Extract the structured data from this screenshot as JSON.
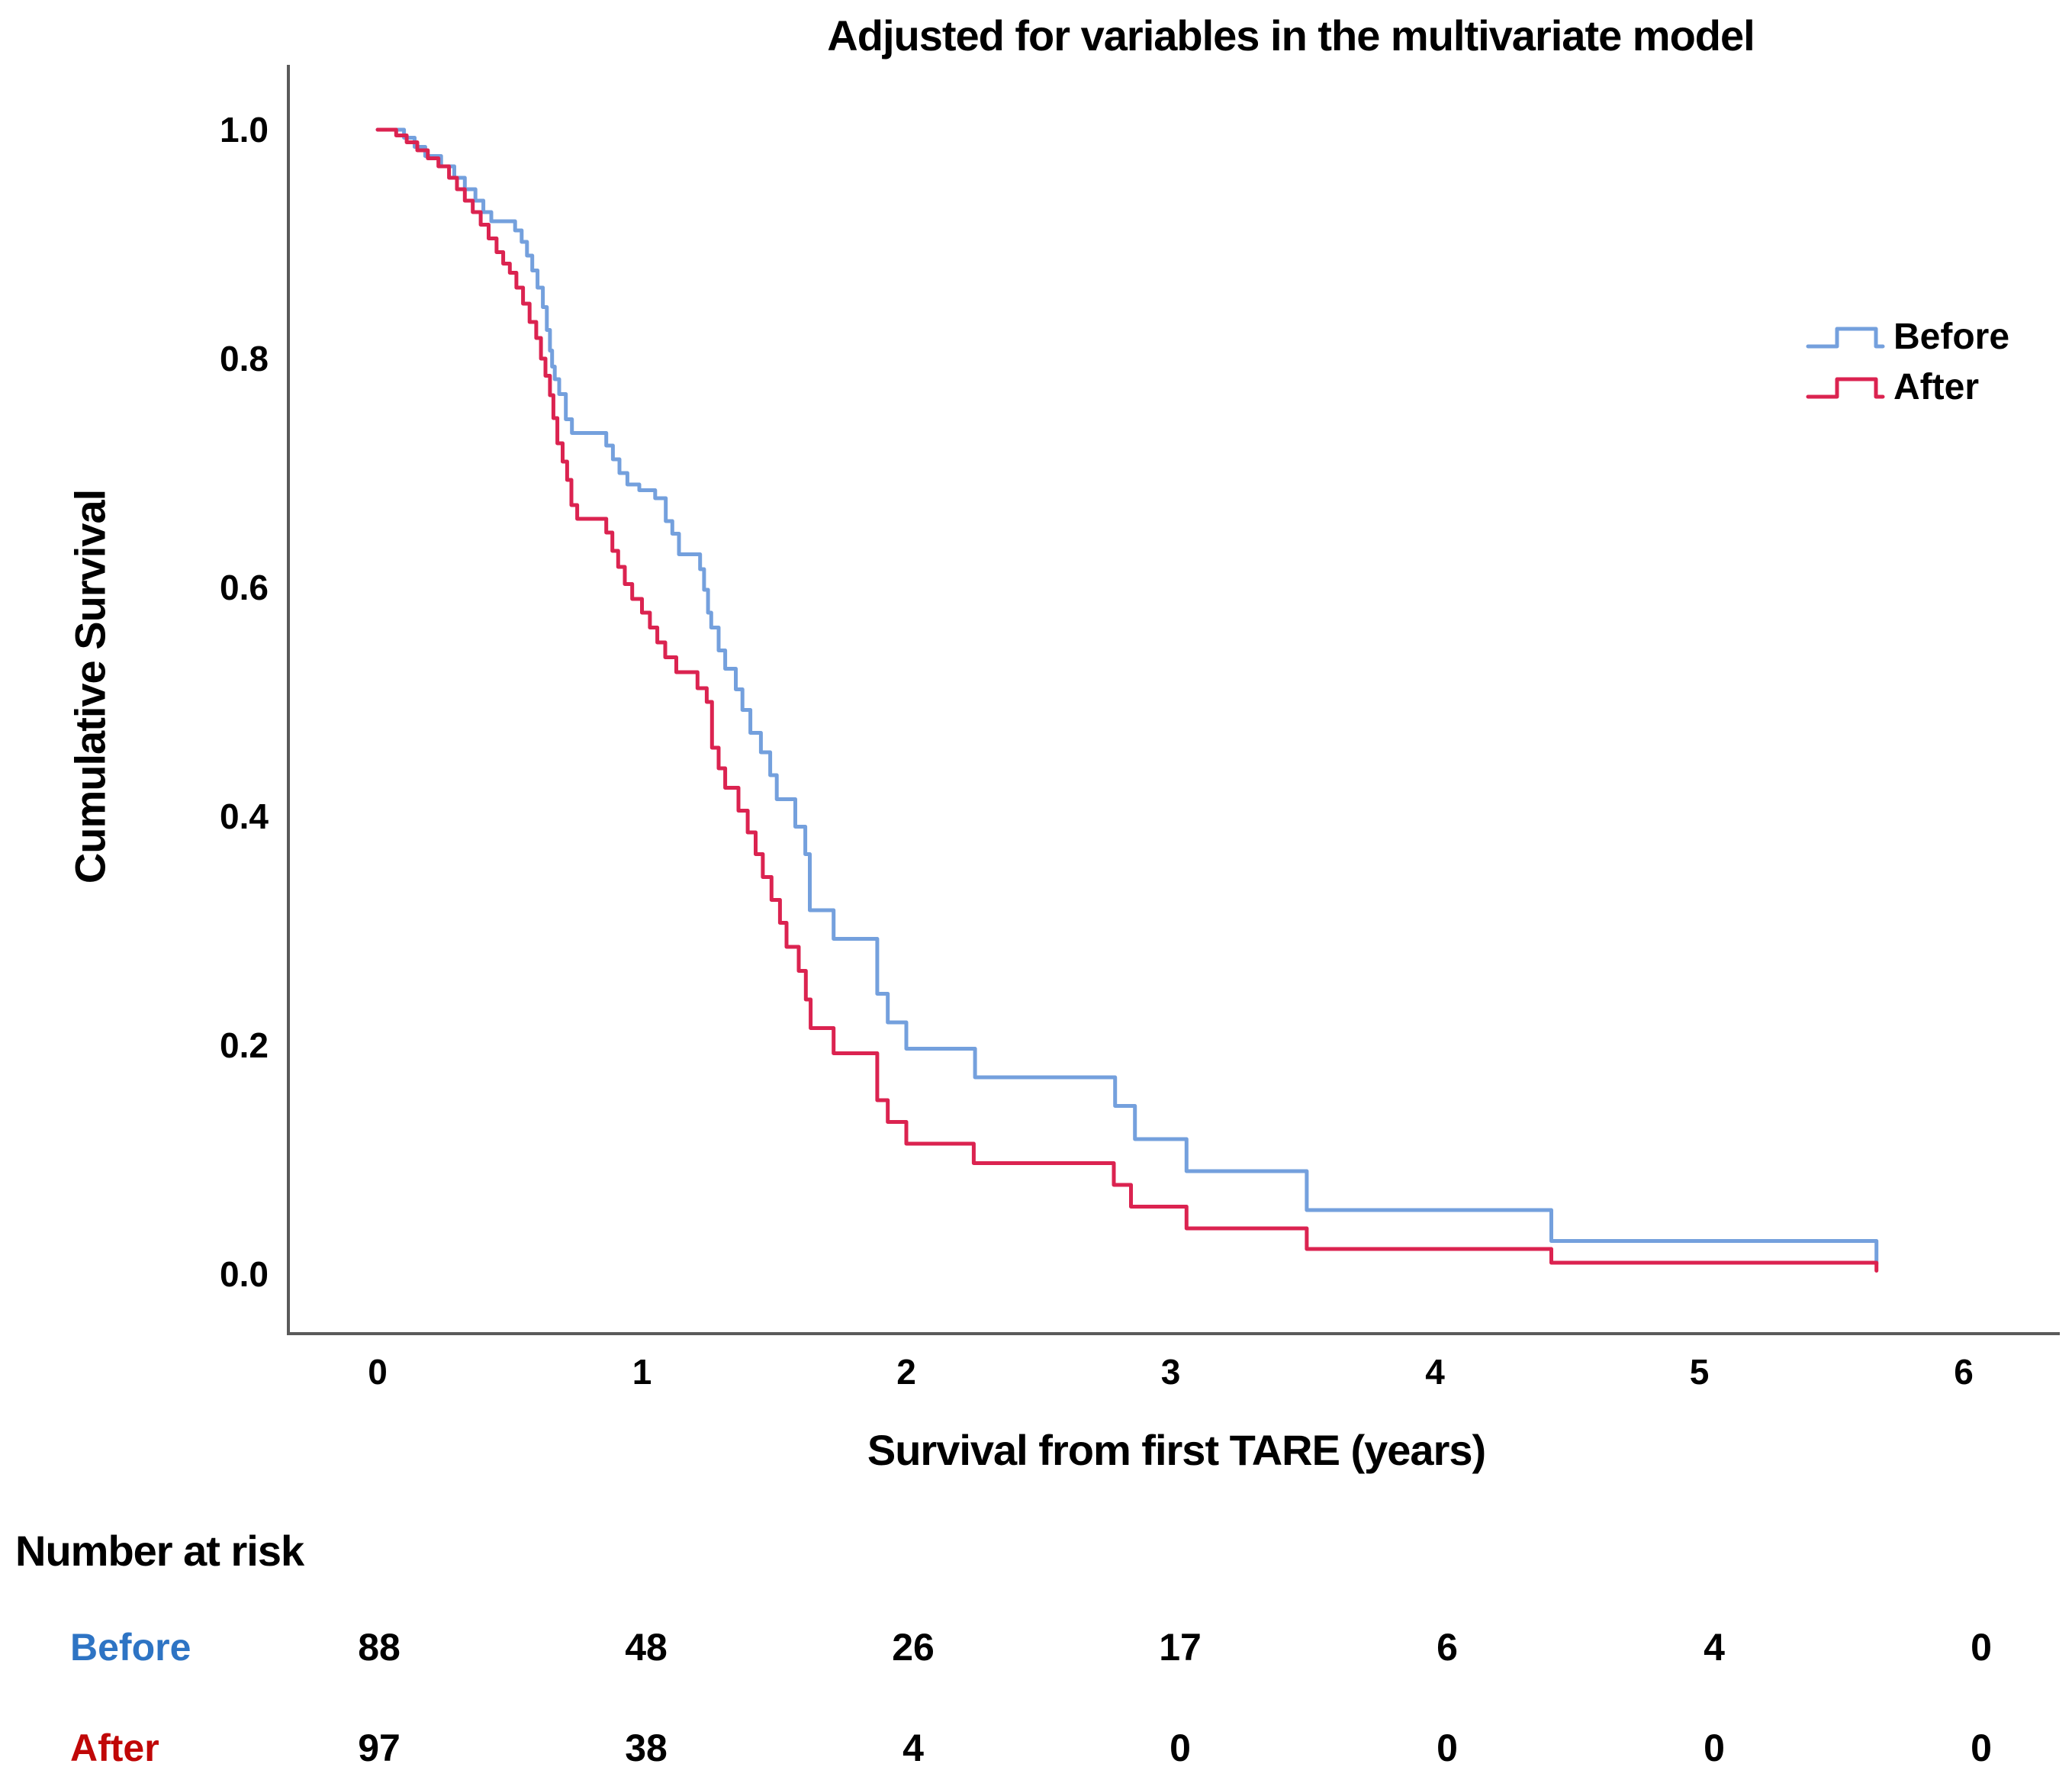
{
  "chart_data": {
    "type": "line",
    "subtype": "kaplan-meier-step",
    "title": "Adjusted for variables in the multivariate model",
    "xlabel": "Survival from first TARE (years)",
    "ylabel": "Cumulative Survival",
    "xlim": [
      0,
      6.35
    ],
    "ylim": [
      0.0,
      1.0
    ],
    "x_ticks": [
      0,
      1,
      2,
      3,
      4,
      5,
      6
    ],
    "y_ticks": [
      "0.0",
      "0.2",
      "0.4",
      "0.6",
      "0.8",
      "1.0"
    ],
    "grid": false,
    "legend_position": "upper right",
    "axis_color": "#5A5A5A",
    "series": [
      {
        "name": "Before",
        "color": "#74A0DD",
        "end_time": 5.67,
        "end_tick_value": 0.009,
        "steps": [
          [
            0,
            1.0
          ],
          [
            0.1,
            0.993
          ],
          [
            0.14,
            0.985
          ],
          [
            0.18,
            0.977
          ],
          [
            0.24,
            0.968
          ],
          [
            0.29,
            0.958
          ],
          [
            0.33,
            0.948
          ],
          [
            0.37,
            0.938
          ],
          [
            0.4,
            0.928
          ],
          [
            0.43,
            0.92
          ],
          [
            0.52,
            0.912
          ],
          [
            0.545,
            0.902
          ],
          [
            0.565,
            0.89
          ],
          [
            0.585,
            0.877
          ],
          [
            0.605,
            0.862
          ],
          [
            0.625,
            0.845
          ],
          [
            0.64,
            0.825
          ],
          [
            0.652,
            0.807
          ],
          [
            0.66,
            0.793
          ],
          [
            0.67,
            0.782
          ],
          [
            0.687,
            0.769
          ],
          [
            0.712,
            0.747
          ],
          [
            0.735,
            0.735
          ],
          [
            0.865,
            0.724
          ],
          [
            0.89,
            0.712
          ],
          [
            0.915,
            0.7
          ],
          [
            0.945,
            0.69
          ],
          [
            0.99,
            0.685
          ],
          [
            1.05,
            0.678
          ],
          [
            1.09,
            0.658
          ],
          [
            1.115,
            0.647
          ],
          [
            1.14,
            0.629
          ],
          [
            1.22,
            0.616
          ],
          [
            1.235,
            0.598
          ],
          [
            1.25,
            0.578
          ],
          [
            1.262,
            0.565
          ],
          [
            1.29,
            0.545
          ],
          [
            1.315,
            0.529
          ],
          [
            1.355,
            0.511
          ],
          [
            1.38,
            0.493
          ],
          [
            1.41,
            0.473
          ],
          [
            1.45,
            0.456
          ],
          [
            1.485,
            0.436
          ],
          [
            1.51,
            0.415
          ],
          [
            1.58,
            0.391
          ],
          [
            1.618,
            0.367
          ],
          [
            1.635,
            0.318
          ],
          [
            1.725,
            0.293
          ],
          [
            1.89,
            0.245
          ],
          [
            1.93,
            0.22
          ],
          [
            2.0,
            0.197
          ],
          [
            2.26,
            0.172
          ],
          [
            2.79,
            0.147
          ],
          [
            2.865,
            0.118
          ],
          [
            3.06,
            0.09
          ],
          [
            3.515,
            0.056
          ],
          [
            4.44,
            0.029
          ]
        ]
      },
      {
        "name": "After",
        "color": "#DB2350",
        "end_time": 5.67,
        "end_tick_value": 0.003,
        "steps": [
          [
            0,
            1.0
          ],
          [
            0.07,
            0.995
          ],
          [
            0.11,
            0.989
          ],
          [
            0.15,
            0.982
          ],
          [
            0.19,
            0.975
          ],
          [
            0.23,
            0.968
          ],
          [
            0.27,
            0.958
          ],
          [
            0.3,
            0.948
          ],
          [
            0.33,
            0.938
          ],
          [
            0.36,
            0.928
          ],
          [
            0.39,
            0.917
          ],
          [
            0.42,
            0.905
          ],
          [
            0.45,
            0.893
          ],
          [
            0.475,
            0.883
          ],
          [
            0.5,
            0.875
          ],
          [
            0.525,
            0.862
          ],
          [
            0.55,
            0.848
          ],
          [
            0.575,
            0.832
          ],
          [
            0.6,
            0.818
          ],
          [
            0.618,
            0.8
          ],
          [
            0.635,
            0.785
          ],
          [
            0.652,
            0.768
          ],
          [
            0.665,
            0.748
          ],
          [
            0.68,
            0.726
          ],
          [
            0.7,
            0.71
          ],
          [
            0.717,
            0.694
          ],
          [
            0.733,
            0.672
          ],
          [
            0.755,
            0.66
          ],
          [
            0.865,
            0.648
          ],
          [
            0.888,
            0.632
          ],
          [
            0.91,
            0.618
          ],
          [
            0.935,
            0.603
          ],
          [
            0.963,
            0.59
          ],
          [
            1.0,
            0.578
          ],
          [
            1.03,
            0.565
          ],
          [
            1.058,
            0.552
          ],
          [
            1.088,
            0.539
          ],
          [
            1.13,
            0.526
          ],
          [
            1.21,
            0.512
          ],
          [
            1.245,
            0.5
          ],
          [
            1.265,
            0.46
          ],
          [
            1.29,
            0.442
          ],
          [
            1.315,
            0.425
          ],
          [
            1.365,
            0.405
          ],
          [
            1.4,
            0.386
          ],
          [
            1.43,
            0.367
          ],
          [
            1.457,
            0.347
          ],
          [
            1.49,
            0.327
          ],
          [
            1.522,
            0.307
          ],
          [
            1.547,
            0.286
          ],
          [
            1.593,
            0.265
          ],
          [
            1.62,
            0.24
          ],
          [
            1.638,
            0.215
          ],
          [
            1.725,
            0.193
          ],
          [
            1.89,
            0.152
          ],
          [
            1.93,
            0.133
          ],
          [
            2.0,
            0.114
          ],
          [
            2.255,
            0.097
          ],
          [
            2.785,
            0.078
          ],
          [
            2.85,
            0.059
          ],
          [
            3.06,
            0.04
          ],
          [
            3.515,
            0.022
          ],
          [
            4.44,
            0.01
          ]
        ]
      }
    ]
  },
  "risk_table": {
    "header": "Number at risk",
    "time_points": [
      0,
      1,
      2,
      3,
      4,
      5,
      6
    ],
    "rows": [
      {
        "label": "Before",
        "color": "#2E74C4",
        "values": [
          "88",
          "48",
          "26",
          "17",
          "6",
          "4",
          "0"
        ]
      },
      {
        "label": "After",
        "color": "#C00707",
        "values": [
          "97",
          "38",
          "4",
          "0",
          "0",
          "0",
          "0"
        ]
      }
    ]
  }
}
